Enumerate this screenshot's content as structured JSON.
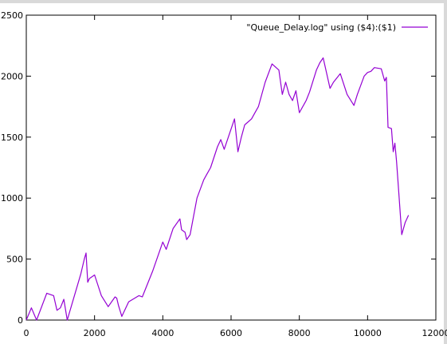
{
  "chart_data": {
    "type": "line",
    "title": "",
    "xlabel": "",
    "ylabel": "",
    "xlim": [
      0,
      12000
    ],
    "ylim": [
      0,
      2500
    ],
    "xticks": [
      0,
      2000,
      4000,
      6000,
      8000,
      10000,
      12000
    ],
    "yticks": [
      0,
      500,
      1000,
      1500,
      2000,
      2500
    ],
    "xtick_labels": [
      "0",
      "2000",
      "4000",
      "6000",
      "8000",
      "10000",
      "12000"
    ],
    "ytick_labels": [
      "0",
      "500",
      "1000",
      "1500",
      "2000",
      "2500"
    ],
    "grid": false,
    "legend_position": "top-right",
    "series": [
      {
        "name": "\"Queue_Delay.log\" using ($4):($1)",
        "color": "#9400d3",
        "x": [
          0,
          150,
          300,
          600,
          800,
          900,
          1000,
          1100,
          1200,
          1600,
          1700,
          1750,
          1800,
          1850,
          2000,
          2200,
          2400,
          2600,
          2650,
          2700,
          2800,
          3000,
          3300,
          3400,
          3700,
          4000,
          4100,
          4300,
          4500,
          4550,
          4650,
          4700,
          4800,
          5000,
          5200,
          5300,
          5400,
          5600,
          5700,
          5800,
          6100,
          6200,
          6300,
          6400,
          6600,
          6700,
          6800,
          7000,
          7200,
          7400,
          7500,
          7600,
          7700,
          7800,
          7900,
          8000,
          8200,
          8300,
          8500,
          8600,
          8700,
          8900,
          9000,
          9200,
          9400,
          9600,
          9700,
          9900,
          10000,
          10100,
          10200,
          10400,
          10500,
          10550,
          10600,
          10700,
          10750,
          10800,
          10850,
          10900,
          11000,
          11100,
          11200
        ],
        "y": [
          0,
          100,
          0,
          220,
          200,
          80,
          100,
          170,
          0,
          380,
          500,
          550,
          310,
          340,
          370,
          200,
          110,
          190,
          180,
          120,
          30,
          150,
          200,
          190,
          400,
          640,
          580,
          750,
          830,
          740,
          720,
          660,
          700,
          1000,
          1150,
          1200,
          1250,
          1420,
          1480,
          1400,
          1650,
          1380,
          1500,
          1600,
          1650,
          1700,
          1750,
          1950,
          2100,
          2050,
          1850,
          1950,
          1850,
          1800,
          1880,
          1700,
          1800,
          1870,
          2050,
          2110,
          2150,
          1900,
          1950,
          2020,
          1850,
          1760,
          1850,
          2000,
          2030,
          2040,
          2070,
          2060,
          1960,
          1990,
          1580,
          1570,
          1380,
          1450,
          1300,
          1100,
          700,
          800,
          860
        ]
      }
    ]
  }
}
